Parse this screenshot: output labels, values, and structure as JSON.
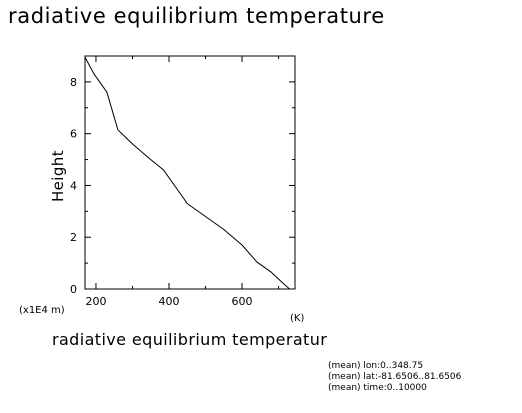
{
  "page": {
    "title": "radiative equilibrium temperature"
  },
  "chart_data": {
    "type": "line",
    "title": "radiative equilibrium temperature",
    "xlabel": "radiative equilibrium temperatur",
    "xunit": "(K)",
    "ylabel": "Height",
    "yunit": "(x1E4 m)",
    "xlim": [
      170,
      745
    ],
    "ylim": [
      0,
      9
    ],
    "x_ticks": [
      200,
      400,
      600
    ],
    "y_ticks": [
      0,
      2,
      4,
      6,
      8
    ],
    "x_tick_labels": [
      "200",
      "400",
      "600"
    ],
    "y_tick_labels": [
      "0",
      "2",
      "4",
      "6",
      "8"
    ],
    "grid": false,
    "series": [
      {
        "x": [
          170,
          195,
          230,
          260,
          300,
          350,
          385,
          420,
          450,
          500,
          550,
          600,
          640,
          680,
          710,
          730
        ],
        "y": [
          8.95,
          8.3,
          7.6,
          6.15,
          5.6,
          5.0,
          4.6,
          3.9,
          3.3,
          2.8,
          2.3,
          1.7,
          1.05,
          0.65,
          0.25,
          0.0
        ]
      }
    ],
    "annotations": [
      "(mean) lon:0..348.75",
      "(mean) lat:-81.6506..81.6506",
      "(mean) time:0..10000"
    ]
  }
}
